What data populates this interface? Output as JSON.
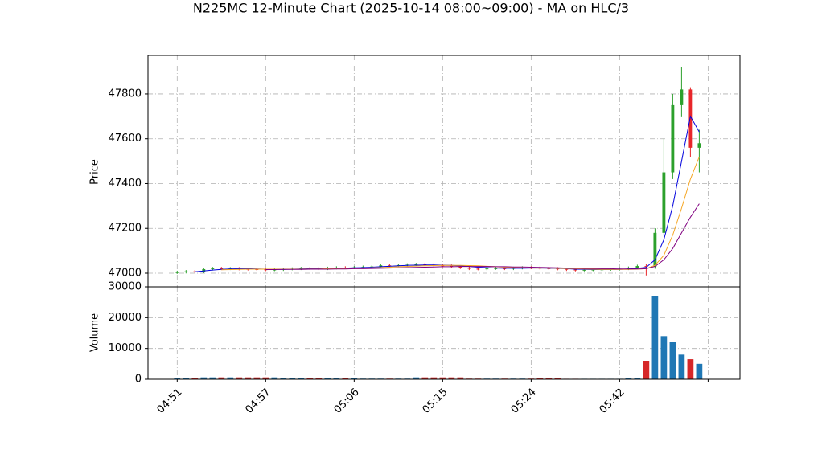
{
  "chart_data": {
    "type": "candlestick",
    "title": "N225MC 12-Minute Chart (2025-10-14 08:00~09:00) - MA on HLC/3",
    "ylabel": "Price",
    "grid": true,
    "up_color": "#2ca02c",
    "down_color": "#e8262a",
    "xlim": [
      -3.3,
      63.6
    ],
    "xticks": [
      {
        "value": 0,
        "label": "04:51"
      },
      {
        "value": 10,
        "label": "04:57"
      },
      {
        "value": 20,
        "label": "05:06"
      },
      {
        "value": 30,
        "label": "05:15"
      },
      {
        "value": 40,
        "label": "05:24"
      },
      {
        "value": 50,
        "label": "05:42"
      },
      {
        "value": 60,
        "label": null
      }
    ],
    "ylim": [
      46939,
      47972
    ],
    "yticks": [
      47000,
      47200,
      47400,
      47600,
      47800
    ],
    "open": [
      47003,
      47005,
      47008,
      47006,
      47018,
      47022,
      47020,
      47021,
      47019,
      47018,
      47017,
      47015,
      47016,
      47019,
      47020,
      47022,
      47021,
      47020,
      47023,
      47025,
      47024,
      47026,
      47028,
      47030,
      47035,
      47034,
      47036,
      47038,
      47040,
      47038,
      47035,
      47033,
      47030,
      47025,
      47020,
      47019,
      47021,
      47022,
      47020,
      47023,
      47025,
      47024,
      47022,
      47021,
      47019,
      47016,
      47014,
      47015,
      47016,
      47017,
      47018,
      47020,
      47024,
      47032,
      47030,
      47180,
      47450,
      47750,
      47820,
      47560
    ],
    "high": [
      47011,
      47014,
      47014,
      47024,
      47028,
      47028,
      47027,
      47027,
      47025,
      47024,
      47023,
      47022,
      47025,
      47026,
      47028,
      47028,
      47027,
      47029,
      47031,
      47031,
      47032,
      47034,
      47036,
      47041,
      47041,
      47042,
      47044,
      47046,
      47046,
      47044,
      47041,
      47039,
      47036,
      47031,
      47026,
      47027,
      47028,
      47028,
      47029,
      47031,
      47031,
      47030,
      47028,
      47027,
      47025,
      47022,
      47021,
      47022,
      47023,
      47024,
      47026,
      47030,
      47038,
      47040,
      47200,
      47600,
      47800,
      47920,
      47830,
      47640
    ],
    "low": [
      46997,
      46999,
      47000,
      47000,
      47012,
      47014,
      47014,
      47013,
      47012,
      47011,
      47009,
      47009,
      47010,
      47013,
      47014,
      47015,
      47014,
      47014,
      47017,
      47018,
      47018,
      47020,
      47022,
      47024,
      47028,
      47028,
      47030,
      47032,
      47032,
      47029,
      47027,
      47024,
      47019,
      47014,
      47013,
      47013,
      47015,
      47014,
      47014,
      47017,
      47018,
      47016,
      47015,
      47013,
      47010,
      47008,
      47008,
      47009,
      47010,
      47011,
      47012,
      47014,
      47018,
      46990,
      47020,
      47170,
      47420,
      47700,
      47520,
      47450
    ],
    "close": [
      47005,
      47008,
      47006,
      47018,
      47022,
      47020,
      47021,
      47019,
      47018,
      47017,
      47015,
      47016,
      47019,
      47020,
      47022,
      47021,
      47020,
      47023,
      47025,
      47024,
      47026,
      47028,
      47030,
      47035,
      47034,
      47036,
      47038,
      47040,
      47038,
      47035,
      47033,
      47030,
      47025,
      47020,
      47019,
      47021,
      47022,
      47020,
      47023,
      47025,
      47024,
      47022,
      47021,
      47019,
      47016,
      47014,
      47015,
      47016,
      47017,
      47018,
      47020,
      47024,
      47032,
      47030,
      47180,
      47450,
      47750,
      47820,
      47560,
      47580
    ],
    "ma": [
      {
        "color": "#0000dd",
        "values": [
          null,
          null,
          47006,
          47010,
          47014,
          47017,
          47019,
          47020,
          47020,
          47019,
          47018,
          47017,
          47017,
          47018,
          47019,
          47020,
          47021,
          47021,
          47022,
          47023,
          47024,
          47025,
          47027,
          47029,
          47031,
          47033,
          47035,
          47036,
          47037,
          47037,
          47036,
          47035,
          47033,
          47030,
          47027,
          47025,
          47023,
          47022,
          47022,
          47022,
          47023,
          47023,
          47022,
          47021,
          47020,
          47018,
          47017,
          47016,
          47016,
          47016,
          47017,
          47019,
          47022,
          47026,
          47060,
          47150,
          47300,
          47500,
          47700,
          47630
        ]
      },
      {
        "color": "#f5a623",
        "values": [
          null,
          null,
          null,
          null,
          null,
          47015,
          47016,
          47017,
          47018,
          47018,
          47018,
          47018,
          47018,
          47018,
          47018,
          47019,
          47019,
          47020,
          47020,
          47021,
          47022,
          47023,
          47024,
          47025,
          47027,
          47029,
          47030,
          47032,
          47033,
          47034,
          47035,
          47035,
          47035,
          47034,
          47033,
          47031,
          47029,
          47027,
          47025,
          47024,
          47023,
          47023,
          47023,
          47022,
          47021,
          47020,
          47019,
          47018,
          47017,
          47017,
          47017,
          47017,
          47018,
          47020,
          47035,
          47080,
          47170,
          47290,
          47420,
          47520
        ]
      },
      {
        "color": "#800080",
        "values": [
          null,
          null,
          null,
          null,
          null,
          null,
          null,
          null,
          null,
          null,
          47016,
          47016,
          47017,
          47017,
          47017,
          47018,
          47018,
          47018,
          47019,
          47019,
          47020,
          47020,
          47021,
          47022,
          47023,
          47024,
          47025,
          47026,
          47027,
          47028,
          47029,
          47029,
          47030,
          47030,
          47030,
          47030,
          47029,
          47029,
          47028,
          47028,
          47027,
          47026,
          47025,
          47024,
          47023,
          47022,
          47021,
          47021,
          47020,
          47020,
          47019,
          47019,
          47019,
          47020,
          47030,
          47060,
          47110,
          47180,
          47250,
          47310
        ]
      }
    ],
    "volume": {
      "ylabel": "Volume",
      "up_color": "#1f77b4",
      "down_color": "#d62728",
      "ylim": [
        0,
        30000
      ],
      "yticks": [
        0,
        10000,
        20000,
        30000
      ],
      "values": [
        400,
        400,
        400,
        600,
        600,
        600,
        600,
        600,
        600,
        600,
        600,
        600,
        400,
        400,
        400,
        400,
        400,
        400,
        400,
        400,
        400,
        200,
        200,
        200,
        200,
        200,
        200,
        600,
        600,
        600,
        600,
        600,
        600,
        200,
        200,
        200,
        200,
        200,
        200,
        200,
        200,
        400,
        400,
        400,
        150,
        150,
        150,
        150,
        150,
        150,
        150,
        300,
        300,
        6000,
        27000,
        14000,
        12000,
        8000,
        6500,
        5000
      ]
    }
  }
}
